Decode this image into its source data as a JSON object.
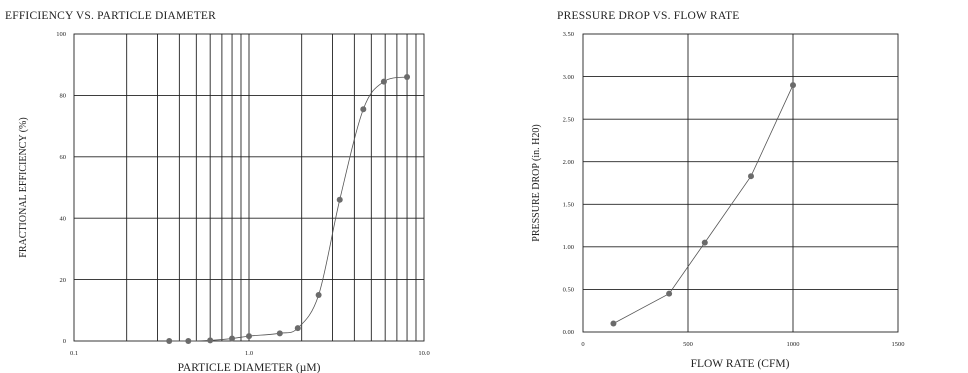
{
  "chart_data": [
    {
      "type": "scatter",
      "title": "EFFICIENCY VS. PARTICLE DIAMETER",
      "xlabel": "PARTICLE DIAMETER (µM)",
      "ylabel": "FRACTIONAL EFFICIENCY (%)",
      "xscale": "log",
      "xlim": [
        0.1,
        10
      ],
      "ylim": [
        0,
        100
      ],
      "x_ticks": [
        0.1,
        1.0,
        10.0
      ],
      "x_tick_labels": [
        "0.1",
        "1.0",
        "10.0"
      ],
      "y_ticks": [
        0,
        20,
        40,
        60,
        80,
        100
      ],
      "y_tick_labels": [
        "0",
        "20",
        "40",
        "60",
        "80",
        "100"
      ],
      "grid": true,
      "line": "smooth",
      "series": [
        {
          "x": [
            0.35,
            0.45,
            0.6,
            0.8,
            1.0,
            1.5,
            1.9,
            2.5,
            3.3,
            4.5,
            5.9,
            8.0
          ],
          "y": [
            0,
            0,
            0.2,
            0.8,
            1.6,
            2.5,
            4.2,
            15,
            46,
            75.5,
            84.5,
            86
          ]
        }
      ]
    },
    {
      "type": "scatter",
      "title": "PRESSURE DROP VS. FLOW RATE",
      "xlabel": "FLOW RATE (CFM)",
      "ylabel": "PRESSURE DROP (in. H20)",
      "xlim": [
        0,
        1500
      ],
      "ylim": [
        0,
        3.5
      ],
      "x_ticks": [
        0,
        500,
        1000,
        1500
      ],
      "x_tick_labels": [
        "0",
        "500",
        "1000",
        "1500"
      ],
      "y_ticks": [
        0,
        0.5,
        1,
        1.5,
        2,
        2.5,
        3,
        3.5
      ],
      "y_tick_labels": [
        "0.00",
        "0.50",
        "1.00",
        "1.50",
        "2.00",
        "2.50",
        "3.00",
        "3.50"
      ],
      "grid": true,
      "line": "straight",
      "series": [
        {
          "x": [
            145,
            410,
            580,
            800,
            1000
          ],
          "y": [
            0.1,
            0.45,
            1.05,
            1.83,
            2.9
          ]
        }
      ]
    }
  ]
}
